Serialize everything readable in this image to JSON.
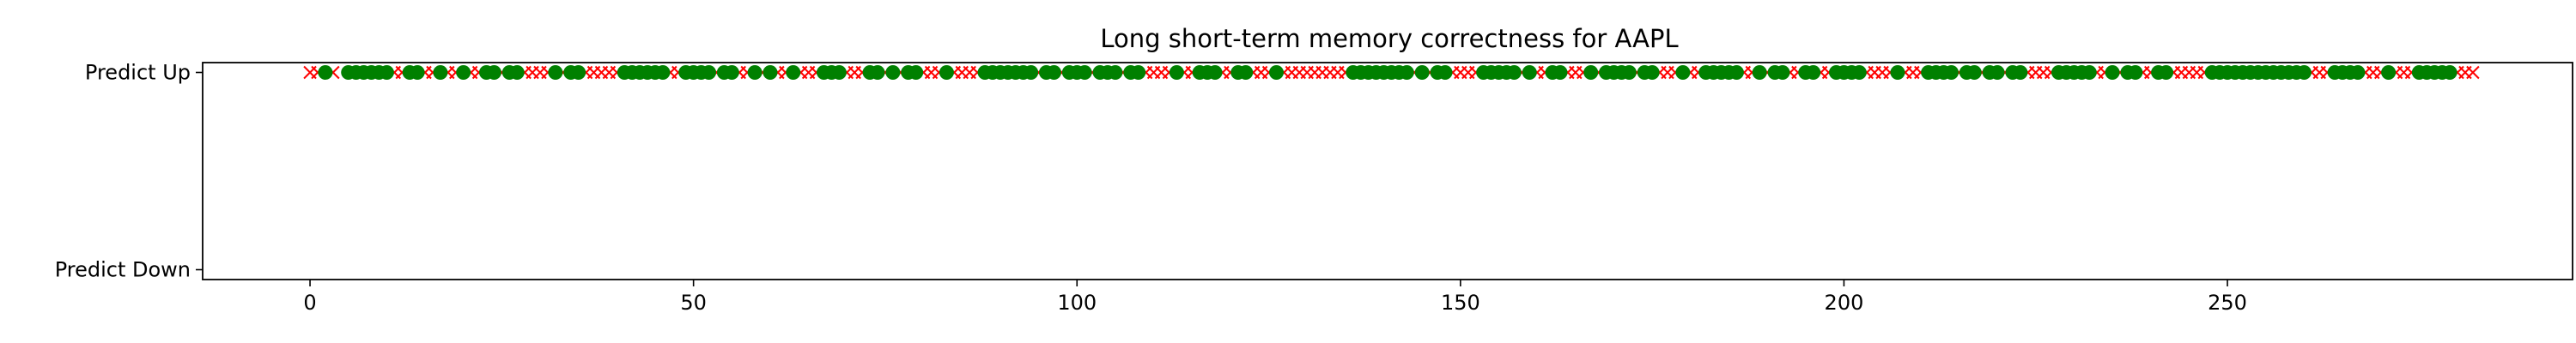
{
  "chart_data": {
    "type": "scatter",
    "title": "Long short-term memory correctness for AAPL",
    "xlabel": "",
    "ylabel": "",
    "xlim": [
      -14,
      295
    ],
    "ylim": [
      -0.05,
      1.05
    ],
    "x_ticks": [
      0,
      50,
      100,
      150,
      200,
      250
    ],
    "y_categories": [
      "Predict Down",
      "Predict Up"
    ],
    "grid": false,
    "colors": {
      "correct": "#008000",
      "incorrect": "#ff0000"
    },
    "series": [
      {
        "marker": "x",
        "color": "#ff0000",
        "x": [
          0,
          1,
          3,
          11,
          12,
          15,
          16,
          18,
          19,
          21,
          22,
          25,
          28,
          29,
          30,
          31,
          33,
          36,
          37,
          38,
          39,
          40,
          47,
          48,
          53,
          56,
          57,
          59,
          61,
          62,
          64,
          65,
          66,
          70,
          71,
          72,
          75,
          77,
          80,
          81,
          82,
          84,
          85,
          86,
          87,
          95,
          98,
          102,
          106,
          109,
          110,
          111,
          112,
          114,
          115,
          119,
          120,
          123,
          124,
          125,
          127,
          128,
          129,
          130,
          131,
          132,
          133,
          134,
          135,
          144,
          146,
          149,
          150,
          151,
          152,
          158,
          160,
          161,
          164,
          165,
          166,
          168,
          173,
          176,
          177,
          178,
          180,
          181,
          187,
          188,
          190,
          193,
          194,
          197,
          198,
          203,
          204,
          205,
          206,
          208,
          209,
          210,
          215,
          218,
          221,
          224,
          225,
          226,
          227,
          233,
          234,
          236,
          239,
          240,
          243,
          244,
          245,
          246,
          247,
          261,
          262,
          263,
          268,
          269,
          270,
          272,
          273,
          274,
          280,
          281,
          282
        ],
        "y": [
          1,
          1,
          1,
          1,
          1,
          1,
          1,
          1,
          1,
          1,
          1,
          1,
          1,
          1,
          1,
          1,
          1,
          1,
          1,
          1,
          1,
          1,
          1,
          1,
          1,
          1,
          1,
          1,
          1,
          1,
          1,
          1,
          1,
          1,
          1,
          1,
          1,
          1,
          1,
          1,
          1,
          1,
          1,
          1,
          1,
          1,
          1,
          1,
          1,
          1,
          1,
          1,
          1,
          1,
          1,
          1,
          1,
          1,
          1,
          1,
          1,
          1,
          1,
          1,
          1,
          1,
          1,
          1,
          1,
          1,
          1,
          1,
          1,
          1,
          1,
          1,
          1,
          1,
          1,
          1,
          1,
          1,
          1,
          1,
          1,
          1,
          1,
          1,
          1,
          1,
          1,
          1,
          1,
          1,
          1,
          1,
          1,
          1,
          1,
          1,
          1,
          1,
          1,
          1,
          1,
          1,
          1,
          1,
          1,
          1,
          1,
          1,
          1,
          1,
          1,
          1,
          1,
          1,
          1,
          1,
          1,
          1,
          1,
          1,
          1,
          1,
          1,
          1,
          1,
          1,
          1
        ]
      },
      {
        "marker": "o",
        "color": "#008000",
        "x": [
          2,
          5,
          6,
          7,
          8,
          9,
          10,
          13,
          14,
          17,
          20,
          23,
          24,
          26,
          27,
          32,
          34,
          35,
          41,
          42,
          43,
          44,
          45,
          46,
          49,
          50,
          51,
          52,
          54,
          55,
          58,
          60,
          63,
          67,
          68,
          69,
          73,
          74,
          76,
          78,
          79,
          83,
          88,
          89,
          90,
          91,
          92,
          93,
          94,
          96,
          97,
          99,
          100,
          101,
          103,
          104,
          105,
          107,
          108,
          113,
          116,
          117,
          118,
          121,
          122,
          126,
          136,
          137,
          138,
          139,
          140,
          141,
          142,
          143,
          145,
          147,
          148,
          153,
          154,
          155,
          156,
          157,
          159,
          162,
          163,
          167,
          169,
          170,
          171,
          172,
          174,
          175,
          179,
          182,
          183,
          184,
          185,
          186,
          189,
          191,
          192,
          195,
          196,
          199,
          200,
          201,
          202,
          207,
          211,
          212,
          213,
          214,
          216,
          217,
          219,
          220,
          222,
          223,
          228,
          229,
          230,
          231,
          232,
          235,
          237,
          238,
          241,
          242,
          248,
          249,
          250,
          251,
          252,
          253,
          254,
          255,
          256,
          257,
          258,
          259,
          260,
          264,
          265,
          266,
          267,
          271,
          275,
          276,
          277,
          278,
          279
        ],
        "y": [
          1,
          1,
          1,
          1,
          1,
          1,
          1,
          1,
          1,
          1,
          1,
          1,
          1,
          1,
          1,
          1,
          1,
          1,
          1,
          1,
          1,
          1,
          1,
          1,
          1,
          1,
          1,
          1,
          1,
          1,
          1,
          1,
          1,
          1,
          1,
          1,
          1,
          1,
          1,
          1,
          1,
          1,
          1,
          1,
          1,
          1,
          1,
          1,
          1,
          1,
          1,
          1,
          1,
          1,
          1,
          1,
          1,
          1,
          1,
          1,
          1,
          1,
          1,
          1,
          1,
          1,
          1,
          1,
          1,
          1,
          1,
          1,
          1,
          1,
          1,
          1,
          1,
          1,
          1,
          1,
          1,
          1,
          1,
          1,
          1,
          1,
          1,
          1,
          1,
          1,
          1,
          1,
          1,
          1,
          1,
          1,
          1,
          1,
          1,
          1,
          1,
          1,
          1,
          1,
          1,
          1,
          1,
          1,
          1,
          1,
          1,
          1,
          1,
          1,
          1,
          1,
          1,
          1,
          1,
          1,
          1,
          1,
          1,
          1,
          1,
          1,
          1,
          1,
          1,
          1,
          1,
          1,
          1,
          1,
          1,
          1,
          1,
          1,
          1,
          1,
          1,
          1,
          1,
          1,
          1,
          1,
          1,
          1,
          1,
          1,
          1
        ]
      }
    ]
  }
}
